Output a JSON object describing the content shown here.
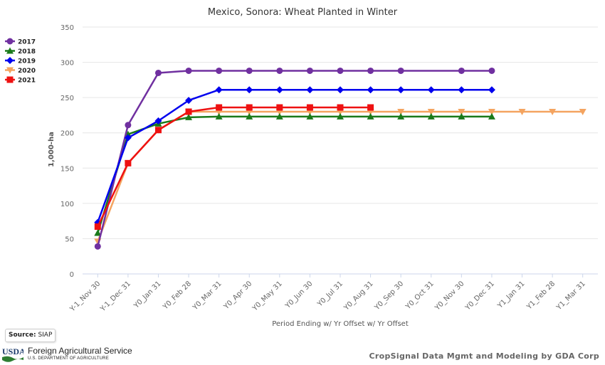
{
  "chart_data": {
    "type": "line",
    "title": "Mexico, Sonora: Wheat Planted in Winter",
    "xlabel": "Period Ending w/ Yr Offset w/ Yr Offset",
    "ylabel": "1,000-ha",
    "ylim": [
      0,
      350
    ],
    "yticks": [
      0,
      50,
      100,
      150,
      200,
      250,
      300,
      350
    ],
    "grid": true,
    "legend_position": "top-left",
    "categories": [
      "Y-1_Nov 30",
      "Y-1_Dec 31",
      "Y0_Jan 31",
      "Y0_Feb 28",
      "Y0_Mar 31",
      "Y0_Apr 30",
      "Y0_May 31",
      "Y0_Jun 30",
      "Y0_Jul 31",
      "Y0_Aug 31",
      "Y0_Sep 30",
      "Y0_Oct 31",
      "Y0_Nov 30",
      "Y0_Dec 31",
      "Y1_Jan 31",
      "Y1_Feb 28",
      "Y1_Mar 31"
    ],
    "series": [
      {
        "name": "2017",
        "color": "#7030a0",
        "marker": "circle",
        "values": [
          39,
          211,
          285,
          288,
          288,
          288,
          288,
          288,
          288,
          288,
          288,
          null,
          288,
          288,
          null,
          null,
          null
        ]
      },
      {
        "name": "2018",
        "color": "#1a7a1a",
        "marker": "triangle-up",
        "values": [
          58,
          198,
          213,
          222,
          223,
          223,
          223,
          223,
          223,
          223,
          223,
          223,
          223,
          223,
          null,
          null,
          null
        ]
      },
      {
        "name": "2019",
        "color": "#0000ee",
        "marker": "diamond",
        "values": [
          73,
          193,
          217,
          246,
          261,
          261,
          261,
          261,
          261,
          261,
          261,
          261,
          261,
          261,
          null,
          null,
          null
        ]
      },
      {
        "name": "2020",
        "color": "#f4a460",
        "marker": "triangle-down",
        "values": [
          46,
          157,
          204,
          230,
          230,
          230,
          230,
          230,
          230,
          230,
          230,
          230,
          230,
          230,
          230,
          230,
          230
        ]
      },
      {
        "name": "2021",
        "color": "#ee1111",
        "marker": "square",
        "values": [
          67,
          157,
          204,
          230,
          236,
          236,
          236,
          236,
          236,
          236,
          null,
          null,
          null,
          null,
          null,
          null,
          null
        ]
      }
    ]
  },
  "footer": {
    "source_label": "Source:",
    "source_value": "SIAP",
    "logo_text": "USDA",
    "agency_name": "Foreign Agricultural Service",
    "agency_dept": "U.S. DEPARTMENT OF AGRICULTURE",
    "credit": "CropSignal Data Mgmt and Modeling by GDA Corp"
  }
}
